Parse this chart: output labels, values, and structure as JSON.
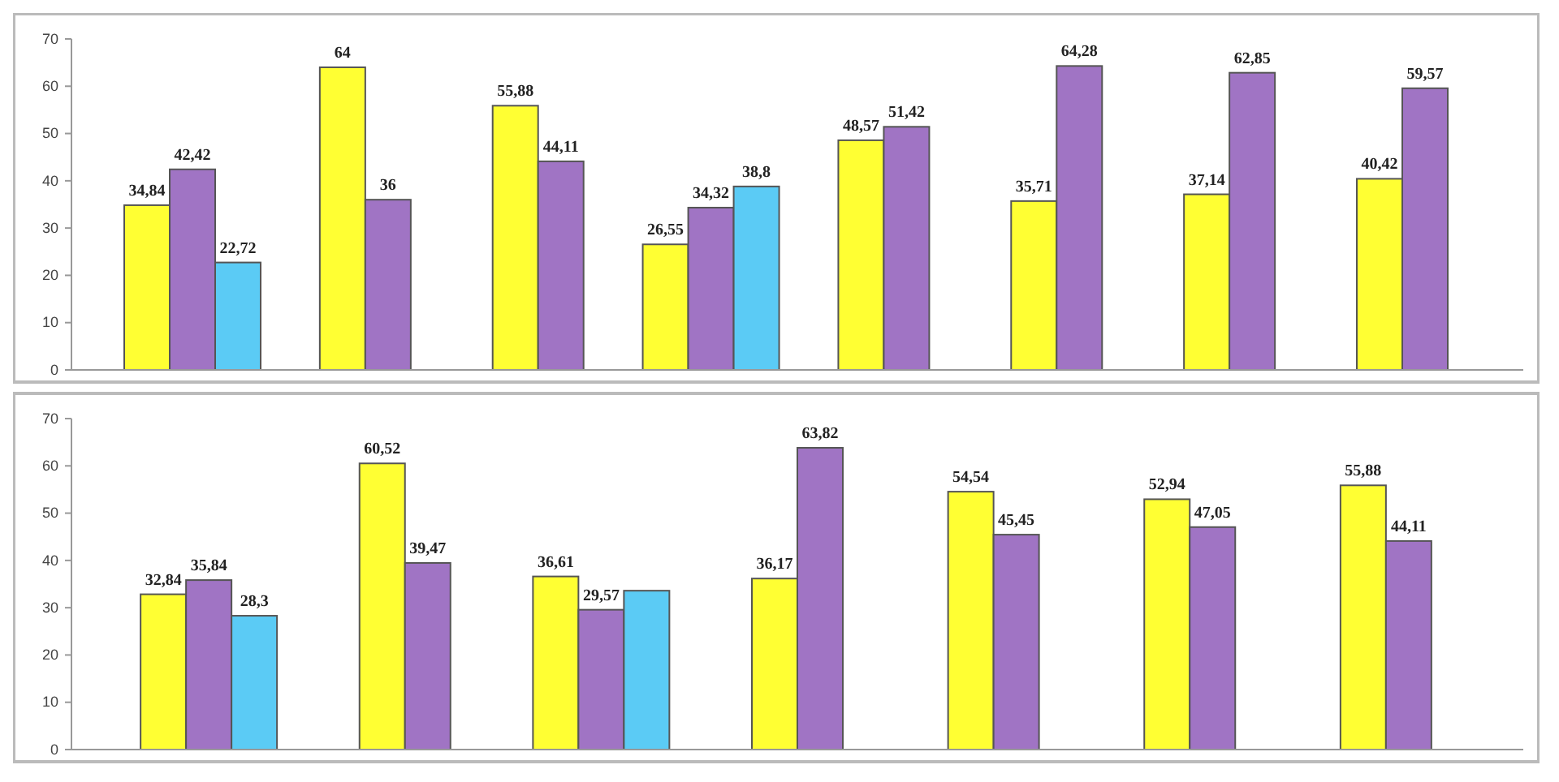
{
  "chart_data": [
    {
      "type": "bar",
      "categories": [
        null,
        null,
        null,
        null,
        null,
        null,
        null,
        null
      ],
      "ylim": [
        0,
        70
      ],
      "yticks": [
        0,
        10,
        20,
        30,
        40,
        50,
        60,
        70
      ],
      "grid": false,
      "series": [
        {
          "color": "#ffff33",
          "values": [
            34.84,
            64,
            55.88,
            26.55,
            48.57,
            35.71,
            37.14,
            40.42
          ],
          "value_labels": [
            "34,84",
            "64",
            "55,88",
            "26,55",
            "48,57",
            "35,71",
            "37,14",
            "40,42"
          ]
        },
        {
          "color": "#a074c4",
          "values": [
            42.42,
            36,
            44.11,
            34.32,
            51.42,
            64.28,
            62.85,
            59.57
          ],
          "value_labels": [
            "42,42",
            "36",
            "44,11",
            "34,32",
            "51,42",
            "64,28",
            "62,85",
            "59,57"
          ]
        },
        {
          "color": "#5bcbf5",
          "values": [
            22.72,
            null,
            null,
            38.8,
            null,
            null,
            null,
            null
          ],
          "value_labels": [
            "22,72",
            null,
            null,
            "38,8",
            null,
            null,
            null,
            null
          ]
        }
      ]
    },
    {
      "type": "bar",
      "categories": [
        null,
        null,
        null,
        null,
        null,
        null,
        null
      ],
      "ylim": [
        0,
        70
      ],
      "yticks": [
        0,
        10,
        20,
        30,
        40,
        50,
        60,
        70
      ],
      "grid": false,
      "series": [
        {
          "color": "#ffff33",
          "values": [
            32.84,
            60.52,
            36.61,
            36.17,
            54.54,
            52.94,
            55.88
          ],
          "value_labels": [
            "32,84",
            "60,52",
            "36,61",
            "36,17",
            "54,54",
            "52,94",
            "55,88"
          ]
        },
        {
          "color": "#a074c4",
          "values": [
            35.84,
            39.47,
            29.57,
            63.82,
            45.45,
            47.05,
            44.11
          ],
          "value_labels": [
            "35,84",
            "39,47",
            "29,57",
            "63,82",
            "45,45",
            "47,05",
            "44,11"
          ]
        },
        {
          "color": "#5bcbf5",
          "values": [
            28.3,
            null,
            33.6,
            null,
            null,
            null,
            null
          ],
          "value_labels": [
            "28,3",
            null,
            null,
            null,
            null,
            null,
            null
          ]
        }
      ]
    }
  ]
}
